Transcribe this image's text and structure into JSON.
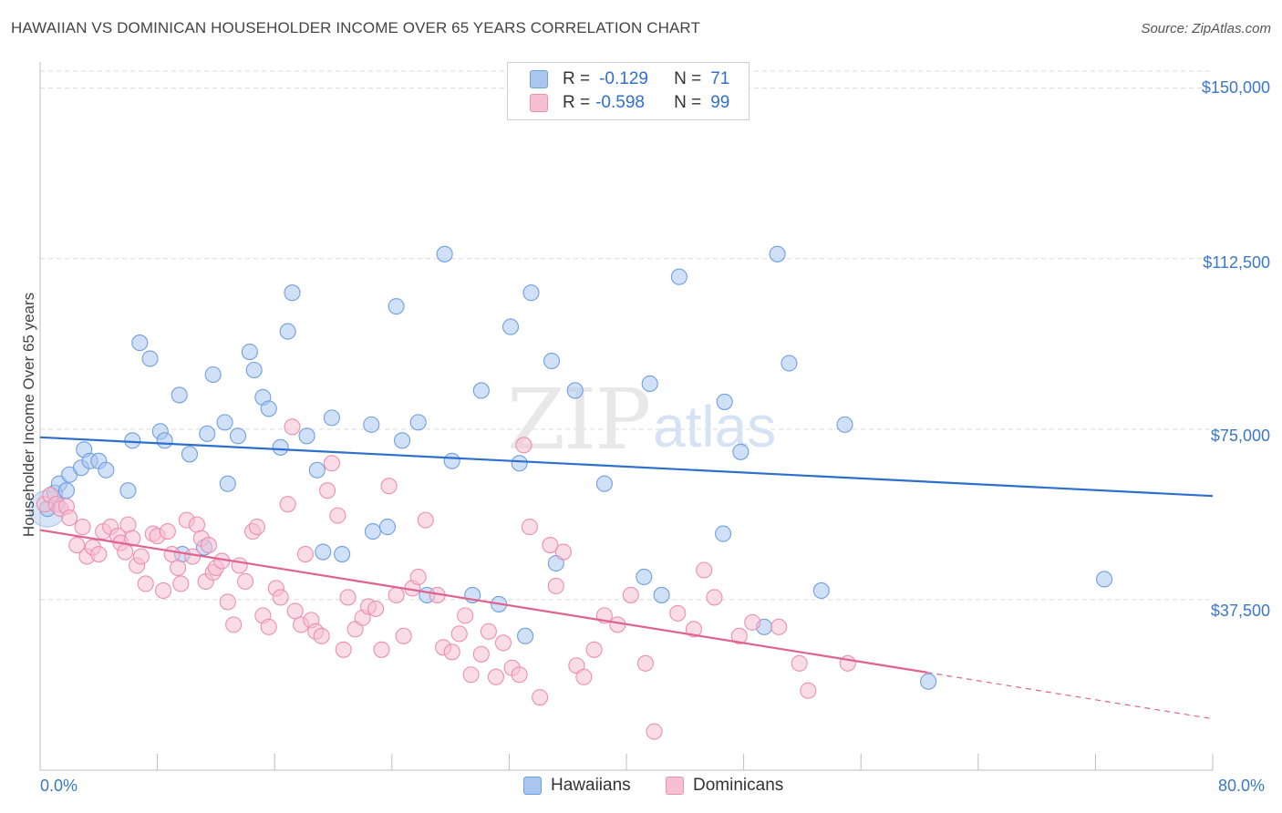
{
  "title": "HAWAIIAN VS DOMINICAN HOUSEHOLDER INCOME OVER 65 YEARS CORRELATION CHART",
  "source": "Source: ZipAtlas.com",
  "watermark": {
    "zip": "ZIP",
    "atlas": "atlas"
  },
  "legend": {
    "r_label": "R =",
    "n_label": "N =",
    "rows": [
      {
        "r": "-0.129",
        "n": "71",
        "color": "#a9c6ee",
        "border": "#6f9fe0"
      },
      {
        "r": "-0.598",
        "n": "99",
        "color": "#f6bfd2",
        "border": "#ec8fb1"
      }
    ]
  },
  "bottom_legend": [
    "Hawaiians",
    "Dominicans"
  ],
  "chart_data": {
    "type": "scatter",
    "title": "HAWAIIAN VS DOMINICAN HOUSEHOLDER INCOME OVER 65 YEARS CORRELATION CHART",
    "xlabel": "",
    "ylabel": "Householder Income Over 65 years",
    "xlim": [
      0,
      80
    ],
    "ylim": [
      0,
      153750
    ],
    "x_tick_labels": [
      "0.0%",
      "80.0%"
    ],
    "y_ticks": [
      37500,
      75000,
      112500,
      150000
    ],
    "y_tick_labels": [
      "$37,500",
      "$75,000",
      "$112,500",
      "$150,000"
    ],
    "grid": true,
    "legend_position": "top-center",
    "series": [
      {
        "name": "Hawaiians",
        "color": "#6f9fe0",
        "fill": "#a9c6ee",
        "trend": {
          "x": [
            0,
            80
          ],
          "y": [
            73200,
            60300
          ],
          "color": "#2d6fcf"
        },
        "points": [
          [
            0.5,
            57500
          ],
          [
            1.0,
            61000
          ],
          [
            1.3,
            63000
          ],
          [
            1.8,
            61500
          ],
          [
            2.0,
            65000
          ],
          [
            2.8,
            66500
          ],
          [
            3.0,
            70500
          ],
          [
            3.4,
            68000
          ],
          [
            4.0,
            68000
          ],
          [
            4.5,
            66000
          ],
          [
            6.0,
            61500
          ],
          [
            6.3,
            72500
          ],
          [
            6.8,
            94000
          ],
          [
            7.5,
            90500
          ],
          [
            8.2,
            74500
          ],
          [
            8.5,
            72500
          ],
          [
            9.5,
            82500
          ],
          [
            9.7,
            47500
          ],
          [
            10.2,
            69500
          ],
          [
            11.2,
            49000
          ],
          [
            11.4,
            74000
          ],
          [
            11.8,
            87000
          ],
          [
            12.6,
            76500
          ],
          [
            12.8,
            63000
          ],
          [
            13.5,
            73500
          ],
          [
            14.3,
            92000
          ],
          [
            14.6,
            88000
          ],
          [
            15.2,
            82000
          ],
          [
            15.6,
            79500
          ],
          [
            16.4,
            71000
          ],
          [
            16.9,
            96500
          ],
          [
            17.2,
            105000
          ],
          [
            18.2,
            73500
          ],
          [
            18.9,
            66000
          ],
          [
            19.3,
            48000
          ],
          [
            19.9,
            77500
          ],
          [
            20.6,
            47500
          ],
          [
            22.6,
            76000
          ],
          [
            22.7,
            52500
          ],
          [
            23.7,
            53500
          ],
          [
            24.3,
            102000
          ],
          [
            24.7,
            72500
          ],
          [
            25.8,
            76500
          ],
          [
            26.4,
            38500
          ],
          [
            27.6,
            113500
          ],
          [
            28.1,
            68000
          ],
          [
            29.5,
            38500
          ],
          [
            30.1,
            83500
          ],
          [
            31.3,
            36500
          ],
          [
            32.1,
            97500
          ],
          [
            32.7,
            67500
          ],
          [
            33.1,
            29500
          ],
          [
            33.5,
            105000
          ],
          [
            34.9,
            90000
          ],
          [
            35.2,
            45500
          ],
          [
            36.5,
            83500
          ],
          [
            38.5,
            63000
          ],
          [
            41.2,
            42500
          ],
          [
            41.6,
            85000
          ],
          [
            42.4,
            38500
          ],
          [
            43.6,
            108500
          ],
          [
            46.6,
            52000
          ],
          [
            46.7,
            81000
          ],
          [
            47.8,
            70000
          ],
          [
            49.4,
            31500
          ],
          [
            50.3,
            113500
          ],
          [
            51.1,
            89500
          ],
          [
            53.3,
            39500
          ],
          [
            54.9,
            76000
          ],
          [
            60.6,
            19500
          ],
          [
            72.6,
            42000
          ]
        ]
      },
      {
        "name": "Dominicans",
        "color": "#ec8fb1",
        "fill": "#f6bfd2",
        "trend": {
          "x": [
            0,
            60.5
          ],
          "y": [
            52800,
            21500
          ],
          "color": "#e0628f"
        },
        "trend_extension": {
          "x": [
            60.5,
            80
          ],
          "y": [
            21500,
            11300
          ]
        },
        "points": [
          [
            0.3,
            58500
          ],
          [
            0.7,
            60500
          ],
          [
            1.1,
            58500
          ],
          [
            1.4,
            57500
          ],
          [
            1.8,
            58000
          ],
          [
            2.0,
            55500
          ],
          [
            2.5,
            49500
          ],
          [
            2.9,
            53500
          ],
          [
            3.2,
            47000
          ],
          [
            3.6,
            49000
          ],
          [
            4.0,
            47500
          ],
          [
            4.3,
            52500
          ],
          [
            4.8,
            53500
          ],
          [
            5.3,
            51500
          ],
          [
            5.5,
            50000
          ],
          [
            5.8,
            48000
          ],
          [
            6.0,
            54000
          ],
          [
            6.3,
            51000
          ],
          [
            6.6,
            45000
          ],
          [
            6.9,
            47000
          ],
          [
            7.2,
            41000
          ],
          [
            7.7,
            52000
          ],
          [
            8.0,
            51500
          ],
          [
            8.4,
            39500
          ],
          [
            8.7,
            52500
          ],
          [
            9.0,
            47500
          ],
          [
            9.4,
            44500
          ],
          [
            9.6,
            41000
          ],
          [
            10.0,
            55000
          ],
          [
            10.4,
            47000
          ],
          [
            10.7,
            54000
          ],
          [
            11.0,
            51000
          ],
          [
            11.3,
            41500
          ],
          [
            11.5,
            49500
          ],
          [
            11.8,
            43500
          ],
          [
            12.0,
            44500
          ],
          [
            12.4,
            46000
          ],
          [
            12.8,
            37000
          ],
          [
            13.2,
            32000
          ],
          [
            13.6,
            45000
          ],
          [
            14.0,
            41500
          ],
          [
            14.5,
            52500
          ],
          [
            14.8,
            53500
          ],
          [
            15.2,
            34000
          ],
          [
            15.6,
            31500
          ],
          [
            16.1,
            40000
          ],
          [
            16.4,
            38000
          ],
          [
            16.9,
            58500
          ],
          [
            17.2,
            75500
          ],
          [
            17.4,
            35000
          ],
          [
            17.8,
            32000
          ],
          [
            18.1,
            47500
          ],
          [
            18.5,
            33000
          ],
          [
            18.8,
            30500
          ],
          [
            19.2,
            29500
          ],
          [
            19.6,
            61500
          ],
          [
            19.9,
            67500
          ],
          [
            20.3,
            56000
          ],
          [
            20.7,
            26500
          ],
          [
            21.0,
            38000
          ],
          [
            21.5,
            31000
          ],
          [
            22.0,
            33500
          ],
          [
            22.4,
            36000
          ],
          [
            22.9,
            35500
          ],
          [
            23.3,
            26500
          ],
          [
            23.8,
            62500
          ],
          [
            24.3,
            38500
          ],
          [
            24.8,
            29500
          ],
          [
            25.4,
            40000
          ],
          [
            25.8,
            42500
          ],
          [
            26.3,
            55000
          ],
          [
            27.1,
            38500
          ],
          [
            27.5,
            27000
          ],
          [
            28.1,
            26000
          ],
          [
            28.6,
            30000
          ],
          [
            29.0,
            34000
          ],
          [
            29.4,
            21000
          ],
          [
            30.1,
            25500
          ],
          [
            30.6,
            30500
          ],
          [
            31.1,
            20500
          ],
          [
            31.6,
            28000
          ],
          [
            32.2,
            22500
          ],
          [
            32.7,
            21000
          ],
          [
            33.0,
            71500
          ],
          [
            33.4,
            53500
          ],
          [
            34.1,
            16000
          ],
          [
            34.8,
            49500
          ],
          [
            35.2,
            40500
          ],
          [
            35.7,
            48000
          ],
          [
            36.6,
            23000
          ],
          [
            37.1,
            20500
          ],
          [
            37.8,
            26500
          ],
          [
            38.5,
            34000
          ],
          [
            39.4,
            32000
          ],
          [
            40.3,
            38500
          ],
          [
            41.3,
            23500
          ],
          [
            41.9,
            8500
          ],
          [
            43.5,
            34500
          ],
          [
            44.6,
            31000
          ]
        ],
        "points_extra": [
          [
            45.3,
            44000
          ],
          [
            46.0,
            38000
          ],
          [
            47.7,
            29500
          ],
          [
            48.6,
            32500
          ],
          [
            50.4,
            31500
          ],
          [
            51.8,
            23500
          ],
          [
            52.4,
            17500
          ],
          [
            55.1,
            23500
          ]
        ]
      }
    ]
  }
}
